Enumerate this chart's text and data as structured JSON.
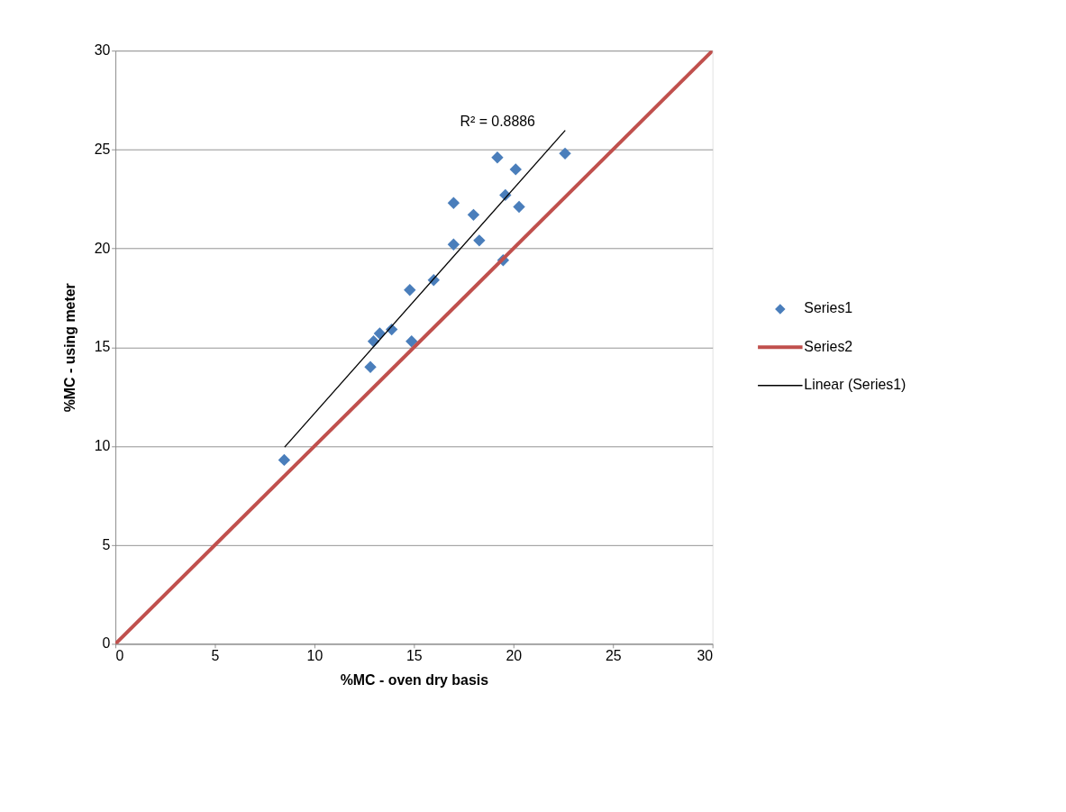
{
  "chart_data": {
    "type": "scatter",
    "xlabel": "%MC - oven dry basis",
    "ylabel": "%MC - using meter",
    "xlim": [
      0,
      30
    ],
    "ylim": [
      0,
      30
    ],
    "xticks": [
      0,
      5,
      10,
      15,
      20,
      25,
      30
    ],
    "yticks": [
      0,
      5,
      10,
      15,
      20,
      25,
      30
    ],
    "grid": "y",
    "legend": "right",
    "series": [
      {
        "name": "Series1",
        "marker": "diamond",
        "color": "#4a7ebb",
        "x": [
          8.48,
          12.81,
          12.97,
          13.28,
          13.88,
          14.88,
          14.79,
          15.99,
          16.99,
          18.28,
          16.99,
          17.99,
          19.48,
          19.59,
          20.28,
          19.19,
          20.11,
          22.59
        ],
        "values": [
          9.3,
          14.0,
          15.3,
          15.7,
          15.9,
          15.3,
          17.9,
          18.4,
          20.2,
          20.4,
          22.3,
          21.7,
          19.4,
          22.7,
          22.1,
          24.6,
          24.0,
          24.8
        ]
      },
      {
        "name": "Series2",
        "type": "line",
        "color": "#c0504d",
        "x": [
          0,
          30
        ],
        "values": [
          0,
          30
        ]
      },
      {
        "name": "Linear (Series1)",
        "type": "line",
        "color": "#000000",
        "x": [
          8.5,
          22.6
        ],
        "values": [
          9.95,
          25.97
        ]
      }
    ],
    "annotations": [
      "R² = 0.8886"
    ]
  }
}
